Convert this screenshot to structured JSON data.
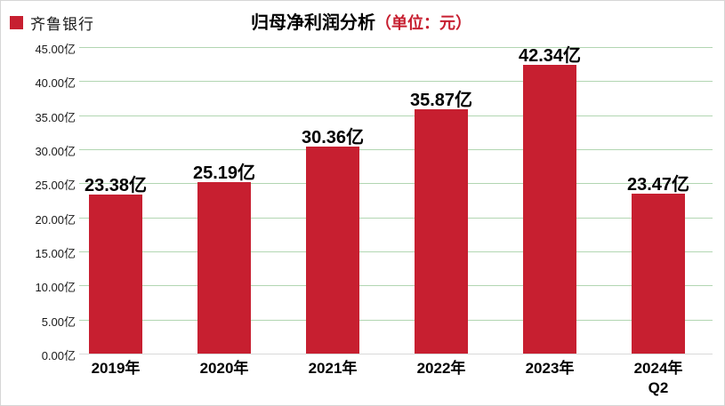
{
  "legend": {
    "label": "齐鲁银行",
    "color": "#c71f30"
  },
  "title": {
    "main": "归母净利润分析",
    "unit": "（单位：元）",
    "unit_color": "#c71f30"
  },
  "chart_data": {
    "type": "bar",
    "title": "归母净利润分析（单位：元）",
    "series_name": "齐鲁银行",
    "categories": [
      "2019年",
      "2020年",
      "2021年",
      "2022年",
      "2023年",
      "2024年\nQ2"
    ],
    "values": [
      23.38,
      25.19,
      30.36,
      35.87,
      42.34,
      23.47
    ],
    "data_labels": [
      "23.38亿",
      "25.19亿",
      "30.36亿",
      "35.87亿",
      "42.34亿",
      "23.47亿"
    ],
    "xlabel": "",
    "ylabel": "",
    "ylim": [
      0,
      45
    ],
    "ytick_step": 5,
    "ytick_labels": [
      "0.00亿",
      "5.00亿",
      "10.00亿",
      "15.00亿",
      "20.00亿",
      "25.00亿",
      "30.00亿",
      "35.00亿",
      "40.00亿",
      "45.00亿"
    ],
    "grid": true,
    "legend_position": "top-left",
    "bar_color": "#c71f30",
    "gridline_color": "#b2d6b2",
    "baseline_color": "#d9d9d9"
  }
}
